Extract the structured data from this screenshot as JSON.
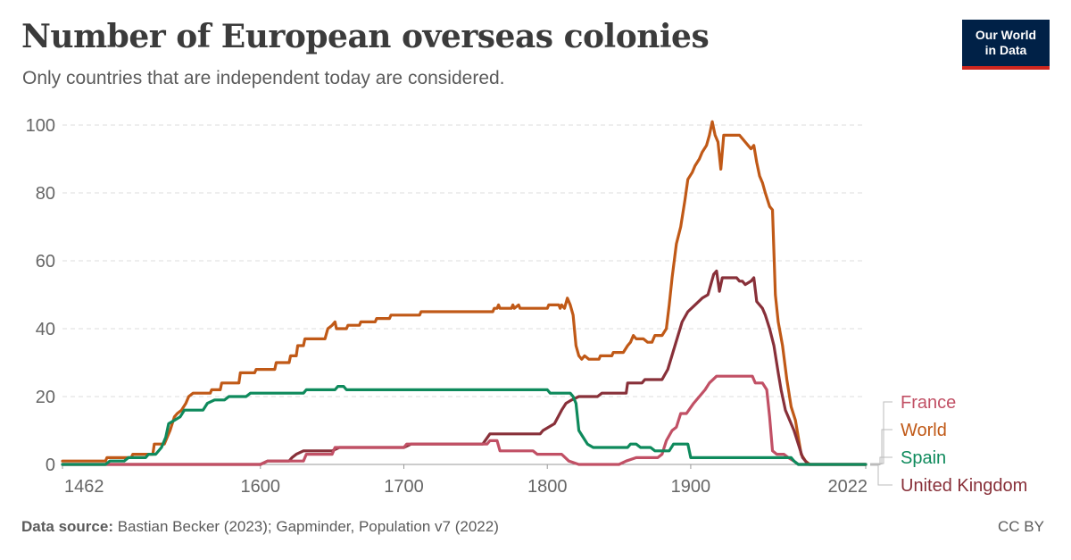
{
  "header": {
    "title": "Number of European overseas colonies",
    "subtitle": "Only countries that are independent today are considered."
  },
  "logo": {
    "line1": "Our World",
    "line2": "in Data"
  },
  "footer": {
    "source_label": "Data source:",
    "source_text": "Bastian Becker (2023); Gapminder, Population v7 (2022)",
    "license": "CC BY"
  },
  "chart_data": {
    "type": "line",
    "title": "Number of European overseas colonies",
    "subtitle": "Only countries that are independent today are considered.",
    "xlim": [
      1462,
      2022
    ],
    "ylim": [
      0,
      100
    ],
    "x_ticks": [
      1462,
      1600,
      1700,
      1800,
      1900,
      2022
    ],
    "y_ticks": [
      0,
      20,
      40,
      60,
      80,
      100
    ],
    "grid": "horizontal dashed",
    "legend": "right, end-of-line labels",
    "series": [
      {
        "name": "World",
        "color": "#c05917",
        "points": [
          [
            1462,
            1
          ],
          [
            1492,
            1
          ],
          [
            1493,
            2
          ],
          [
            1510,
            2
          ],
          [
            1511,
            3
          ],
          [
            1525,
            3
          ],
          [
            1526,
            6
          ],
          [
            1533,
            6
          ],
          [
            1534,
            7
          ],
          [
            1537,
            10
          ],
          [
            1540,
            14
          ],
          [
            1542,
            15
          ],
          [
            1545,
            16
          ],
          [
            1548,
            18
          ],
          [
            1550,
            20
          ],
          [
            1553,
            21
          ],
          [
            1565,
            21
          ],
          [
            1566,
            22
          ],
          [
            1572,
            22
          ],
          [
            1573,
            24
          ],
          [
            1585,
            24
          ],
          [
            1586,
            27
          ],
          [
            1596,
            27
          ],
          [
            1597,
            28
          ],
          [
            1610,
            28
          ],
          [
            1611,
            30
          ],
          [
            1620,
            30
          ],
          [
            1621,
            32
          ],
          [
            1625,
            32
          ],
          [
            1626,
            35
          ],
          [
            1630,
            35
          ],
          [
            1631,
            37
          ],
          [
            1645,
            37
          ],
          [
            1647,
            40
          ],
          [
            1650,
            41
          ],
          [
            1652,
            42
          ],
          [
            1653,
            40
          ],
          [
            1660,
            40
          ],
          [
            1661,
            41
          ],
          [
            1669,
            41
          ],
          [
            1670,
            42
          ],
          [
            1680,
            42
          ],
          [
            1681,
            43
          ],
          [
            1690,
            43
          ],
          [
            1691,
            44
          ],
          [
            1711,
            44
          ],
          [
            1712,
            45
          ],
          [
            1762,
            45
          ],
          [
            1763,
            46
          ],
          [
            1765,
            46
          ],
          [
            1766,
            47
          ],
          [
            1767,
            46
          ],
          [
            1775,
            46
          ],
          [
            1776,
            47
          ],
          [
            1777,
            46
          ],
          [
            1780,
            47
          ],
          [
            1781,
            46
          ],
          [
            1800,
            46
          ],
          [
            1801,
            47
          ],
          [
            1808,
            47
          ],
          [
            1809,
            46
          ],
          [
            1810,
            47
          ],
          [
            1812,
            46
          ],
          [
            1814,
            49
          ],
          [
            1816,
            47
          ],
          [
            1818,
            44
          ],
          [
            1820,
            35
          ],
          [
            1822,
            32
          ],
          [
            1824,
            31
          ],
          [
            1826,
            32
          ],
          [
            1829,
            31
          ],
          [
            1836,
            31
          ],
          [
            1837,
            32
          ],
          [
            1845,
            32
          ],
          [
            1846,
            33
          ],
          [
            1853,
            33
          ],
          [
            1856,
            35
          ],
          [
            1858,
            36
          ],
          [
            1860,
            38
          ],
          [
            1862,
            37
          ],
          [
            1867,
            37
          ],
          [
            1870,
            36
          ],
          [
            1873,
            36
          ],
          [
            1875,
            38
          ],
          [
            1880,
            38
          ],
          [
            1883,
            40
          ],
          [
            1885,
            47
          ],
          [
            1887,
            55
          ],
          [
            1890,
            65
          ],
          [
            1893,
            70
          ],
          [
            1896,
            78
          ],
          [
            1898,
            84
          ],
          [
            1901,
            86
          ],
          [
            1903,
            88
          ],
          [
            1906,
            90
          ],
          [
            1908,
            92
          ],
          [
            1911,
            94
          ],
          [
            1913,
            97
          ],
          [
            1915,
            101
          ],
          [
            1917,
            97
          ],
          [
            1919,
            95
          ],
          [
            1921,
            87
          ],
          [
            1923,
            97
          ],
          [
            1934,
            97
          ],
          [
            1936,
            96
          ],
          [
            1938,
            95
          ],
          [
            1940,
            94
          ],
          [
            1942,
            93
          ],
          [
            1944,
            94
          ],
          [
            1946,
            89
          ],
          [
            1948,
            85
          ],
          [
            1950,
            83
          ],
          [
            1952,
            80
          ],
          [
            1955,
            76
          ],
          [
            1957,
            75
          ],
          [
            1959,
            50
          ],
          [
            1961,
            42
          ],
          [
            1964,
            35
          ],
          [
            1967,
            25
          ],
          [
            1970,
            17
          ],
          [
            1973,
            13
          ],
          [
            1975,
            8
          ],
          [
            1977,
            3
          ],
          [
            1980,
            1
          ],
          [
            1983,
            0
          ],
          [
            2022,
            0
          ]
        ]
      },
      {
        "name": "United Kingdom",
        "color": "#883039",
        "points": [
          [
            1462,
            0
          ],
          [
            1600,
            0
          ],
          [
            1605,
            1
          ],
          [
            1620,
            1
          ],
          [
            1622,
            2
          ],
          [
            1625,
            3
          ],
          [
            1630,
            4
          ],
          [
            1650,
            4
          ],
          [
            1655,
            5
          ],
          [
            1700,
            5
          ],
          [
            1705,
            6
          ],
          [
            1755,
            6
          ],
          [
            1760,
            9
          ],
          [
            1795,
            9
          ],
          [
            1797,
            10
          ],
          [
            1805,
            12
          ],
          [
            1810,
            16
          ],
          [
            1813,
            18
          ],
          [
            1817,
            19
          ],
          [
            1822,
            20
          ],
          [
            1835,
            20
          ],
          [
            1838,
            21
          ],
          [
            1855,
            21
          ],
          [
            1856,
            24
          ],
          [
            1866,
            24
          ],
          [
            1868,
            25
          ],
          [
            1880,
            25
          ],
          [
            1884,
            28
          ],
          [
            1889,
            35
          ],
          [
            1894,
            42
          ],
          [
            1898,
            45
          ],
          [
            1903,
            47
          ],
          [
            1908,
            49
          ],
          [
            1912,
            50
          ],
          [
            1914,
            53
          ],
          [
            1916,
            56
          ],
          [
            1918,
            57
          ],
          [
            1920,
            51
          ],
          [
            1922,
            55
          ],
          [
            1932,
            55
          ],
          [
            1934,
            54
          ],
          [
            1936,
            54
          ],
          [
            1938,
            53
          ],
          [
            1942,
            54
          ],
          [
            1944,
            55
          ],
          [
            1946,
            48
          ],
          [
            1950,
            46
          ],
          [
            1952,
            44
          ],
          [
            1955,
            40
          ],
          [
            1958,
            35
          ],
          [
            1961,
            27
          ],
          [
            1963,
            22
          ],
          [
            1966,
            16
          ],
          [
            1968,
            14
          ],
          [
            1972,
            10
          ],
          [
            1975,
            6
          ],
          [
            1978,
            2
          ],
          [
            1982,
            0
          ],
          [
            2022,
            0
          ]
        ]
      },
      {
        "name": "France",
        "color": "#c15065",
        "points": [
          [
            1462,
            0
          ],
          [
            1600,
            0
          ],
          [
            1605,
            1
          ],
          [
            1630,
            1
          ],
          [
            1632,
            3
          ],
          [
            1650,
            3
          ],
          [
            1652,
            5
          ],
          [
            1700,
            5
          ],
          [
            1702,
            6
          ],
          [
            1758,
            6
          ],
          [
            1760,
            7
          ],
          [
            1765,
            7
          ],
          [
            1767,
            4
          ],
          [
            1790,
            4
          ],
          [
            1793,
            3
          ],
          [
            1810,
            3
          ],
          [
            1815,
            1
          ],
          [
            1822,
            0
          ],
          [
            1850,
            0
          ],
          [
            1855,
            1
          ],
          [
            1862,
            2
          ],
          [
            1877,
            2
          ],
          [
            1880,
            3
          ],
          [
            1883,
            7
          ],
          [
            1887,
            10
          ],
          [
            1890,
            11
          ],
          [
            1893,
            15
          ],
          [
            1897,
            15
          ],
          [
            1902,
            18
          ],
          [
            1906,
            20
          ],
          [
            1910,
            22
          ],
          [
            1913,
            24
          ],
          [
            1918,
            26
          ],
          [
            1943,
            26
          ],
          [
            1945,
            24
          ],
          [
            1950,
            24
          ],
          [
            1953,
            22
          ],
          [
            1955,
            14
          ],
          [
            1957,
            4
          ],
          [
            1960,
            3
          ],
          [
            1965,
            3
          ],
          [
            1968,
            2
          ],
          [
            1972,
            1
          ],
          [
            1975,
            0
          ],
          [
            2022,
            0
          ]
        ]
      },
      {
        "name": "Spain",
        "color": "#0e8a5c",
        "points": [
          [
            1462,
            0
          ],
          [
            1492,
            0
          ],
          [
            1495,
            1
          ],
          [
            1505,
            1
          ],
          [
            1508,
            2
          ],
          [
            1520,
            2
          ],
          [
            1522,
            3
          ],
          [
            1527,
            3
          ],
          [
            1531,
            5
          ],
          [
            1534,
            8
          ],
          [
            1536,
            12
          ],
          [
            1540,
            13
          ],
          [
            1544,
            14
          ],
          [
            1547,
            16
          ],
          [
            1560,
            16
          ],
          [
            1563,
            18
          ],
          [
            1568,
            19
          ],
          [
            1575,
            19
          ],
          [
            1578,
            20
          ],
          [
            1590,
            20
          ],
          [
            1593,
            21
          ],
          [
            1630,
            21
          ],
          [
            1632,
            22
          ],
          [
            1652,
            22
          ],
          [
            1654,
            23
          ],
          [
            1658,
            23
          ],
          [
            1660,
            22
          ],
          [
            1800,
            22
          ],
          [
            1802,
            21
          ],
          [
            1816,
            21
          ],
          [
            1818,
            20
          ],
          [
            1820,
            18
          ],
          [
            1822,
            10
          ],
          [
            1825,
            8
          ],
          [
            1828,
            6
          ],
          [
            1832,
            5
          ],
          [
            1856,
            5
          ],
          [
            1858,
            6
          ],
          [
            1862,
            6
          ],
          [
            1865,
            5
          ],
          [
            1872,
            5
          ],
          [
            1875,
            4
          ],
          [
            1885,
            4
          ],
          [
            1888,
            6
          ],
          [
            1898,
            6
          ],
          [
            1900,
            2
          ],
          [
            1970,
            2
          ],
          [
            1972,
            1
          ],
          [
            1975,
            0
          ],
          [
            2022,
            0
          ]
        ]
      }
    ],
    "end_labels": [
      "France",
      "World",
      "Spain",
      "United Kingdom"
    ]
  }
}
